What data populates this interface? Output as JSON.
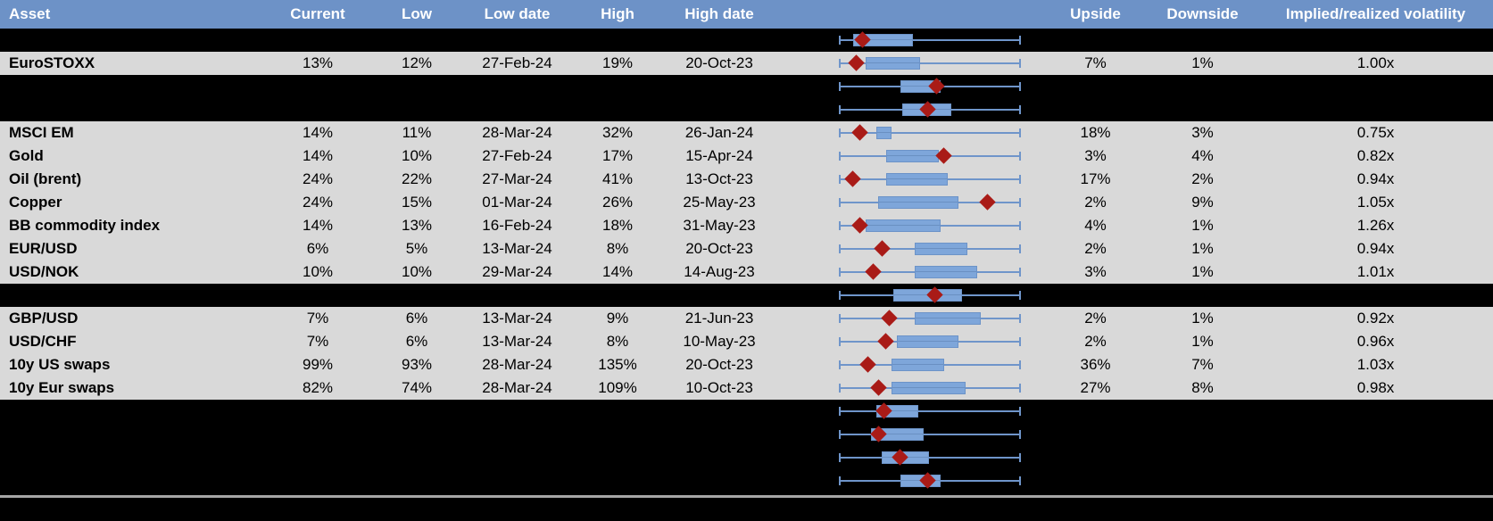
{
  "table": {
    "columns": [
      {
        "key": "asset",
        "label": "Asset"
      },
      {
        "key": "current",
        "label": "Current"
      },
      {
        "key": "low",
        "label": "Low"
      },
      {
        "key": "low_date",
        "label": "Low date"
      },
      {
        "key": "high",
        "label": "High"
      },
      {
        "key": "high_date",
        "label": "High date"
      },
      {
        "key": "plot",
        "label": ""
      },
      {
        "key": "upside",
        "label": "Upside"
      },
      {
        "key": "downside",
        "label": "Downside"
      },
      {
        "key": "ivol",
        "label": "Implied/realized volatility"
      }
    ],
    "rows": [
      {
        "type": "spacer",
        "box": {
          "lo": 0.08,
          "hi": 0.41,
          "d": 0.13
        }
      },
      {
        "type": "data",
        "asset": "EuroSTOXX",
        "current": "13%",
        "low": "12%",
        "low_date": "27-Feb-24",
        "high": "19%",
        "high_date": "20-Oct-23",
        "upside": "7%",
        "downside": "1%",
        "ivol": "1.00x",
        "box": {
          "lo": 0.15,
          "hi": 0.45,
          "d": 0.1
        }
      },
      {
        "type": "spacer",
        "box": {
          "lo": 0.34,
          "hi": 0.56,
          "d": 0.54
        }
      },
      {
        "type": "spacer",
        "box": {
          "lo": 0.35,
          "hi": 0.62,
          "d": 0.49
        }
      },
      {
        "type": "data",
        "asset": "MSCI EM",
        "current": "14%",
        "low": "11%",
        "low_date": "28-Mar-24",
        "high": "32%",
        "high_date": "26-Jan-24",
        "upside": "18%",
        "downside": "3%",
        "ivol": "0.75x",
        "box": {
          "lo": 0.21,
          "hi": 0.29,
          "d": 0.12
        }
      },
      {
        "type": "data",
        "asset": "Gold",
        "current": "14%",
        "low": "10%",
        "low_date": "27-Feb-24",
        "high": "17%",
        "high_date": "15-Apr-24",
        "upside": "3%",
        "downside": "4%",
        "ivol": "0.82x",
        "box": {
          "lo": 0.26,
          "hi": 0.55,
          "d": 0.58
        }
      },
      {
        "type": "data",
        "asset": "Oil (brent)",
        "current": "24%",
        "low": "22%",
        "low_date": "27-Mar-24",
        "high": "41%",
        "high_date": "13-Oct-23",
        "upside": "17%",
        "downside": "2%",
        "ivol": "0.94x",
        "box": {
          "lo": 0.26,
          "hi": 0.6,
          "d": 0.08
        }
      },
      {
        "type": "data",
        "asset": "Copper",
        "current": "24%",
        "low": "15%",
        "low_date": "01-Mar-24",
        "high": "26%",
        "high_date": "25-May-23",
        "upside": "2%",
        "downside": "9%",
        "ivol": "1.05x",
        "box": {
          "lo": 0.22,
          "hi": 0.66,
          "d": 0.82
        }
      },
      {
        "type": "data",
        "asset": "BB commodity index",
        "current": "14%",
        "low": "13%",
        "low_date": "16-Feb-24",
        "high": "18%",
        "high_date": "31-May-23",
        "upside": "4%",
        "downside": "1%",
        "ivol": "1.26x",
        "box": {
          "lo": 0.15,
          "hi": 0.56,
          "d": 0.12
        }
      },
      {
        "type": "data",
        "asset": "EUR/USD",
        "current": "6%",
        "low": "5%",
        "low_date": "13-Mar-24",
        "high": "8%",
        "high_date": "20-Oct-23",
        "upside": "2%",
        "downside": "1%",
        "ivol": "0.94x",
        "box": {
          "lo": 0.42,
          "hi": 0.71,
          "d": 0.24
        }
      },
      {
        "type": "data",
        "asset": "USD/NOK",
        "current": "10%",
        "low": "10%",
        "low_date": "29-Mar-24",
        "high": "14%",
        "high_date": "14-Aug-23",
        "upside": "3%",
        "downside": "1%",
        "ivol": "1.01x",
        "box": {
          "lo": 0.42,
          "hi": 0.76,
          "d": 0.19
        }
      },
      {
        "type": "spacer",
        "box": {
          "lo": 0.3,
          "hi": 0.68,
          "d": 0.53
        }
      },
      {
        "type": "data",
        "asset": "GBP/USD",
        "current": "7%",
        "low": "6%",
        "low_date": "13-Mar-24",
        "high": "9%",
        "high_date": "21-Jun-23",
        "upside": "2%",
        "downside": "1%",
        "ivol": "0.92x",
        "box": {
          "lo": 0.42,
          "hi": 0.78,
          "d": 0.28
        }
      },
      {
        "type": "data",
        "asset": "USD/CHF",
        "current": "7%",
        "low": "6%",
        "low_date": "13-Mar-24",
        "high": "8%",
        "high_date": "10-May-23",
        "upside": "2%",
        "downside": "1%",
        "ivol": "0.96x",
        "box": {
          "lo": 0.32,
          "hi": 0.66,
          "d": 0.26
        }
      },
      {
        "type": "data",
        "asset": "10y US swaps",
        "current": "99%",
        "low": "93%",
        "low_date": "28-Mar-24",
        "high": "135%",
        "high_date": "20-Oct-23",
        "upside": "36%",
        "downside": "7%",
        "ivol": "1.03x",
        "box": {
          "lo": 0.29,
          "hi": 0.58,
          "d": 0.16
        }
      },
      {
        "type": "data",
        "asset": "10y Eur swaps",
        "current": "82%",
        "low": "74%",
        "low_date": "28-Mar-24",
        "high": "109%",
        "high_date": "10-Oct-23",
        "upside": "27%",
        "downside": "8%",
        "ivol": "0.98x",
        "box": {
          "lo": 0.29,
          "hi": 0.7,
          "d": 0.22
        }
      },
      {
        "type": "spacer",
        "box": {
          "lo": 0.21,
          "hi": 0.44,
          "d": 0.25
        }
      },
      {
        "type": "spacer",
        "box": {
          "lo": 0.18,
          "hi": 0.47,
          "d": 0.22
        }
      },
      {
        "type": "spacer",
        "box": {
          "lo": 0.24,
          "hi": 0.5,
          "d": 0.34
        }
      },
      {
        "type": "spacer",
        "box": {
          "lo": 0.34,
          "hi": 0.56,
          "d": 0.49
        }
      }
    ]
  },
  "chart_data": {
    "type": "boxplot",
    "note": "Each row renders a min-max normalized horizontal box plot: whiskers span full range (0-1), box = lo..hi, red diamond = current level marker at d.",
    "rows_with_assets": [
      "EuroSTOXX",
      "MSCI EM",
      "Gold",
      "Oil (brent)",
      "Copper",
      "BB commodity index",
      "EUR/USD",
      "USD/NOK",
      "GBP/USD",
      "USD/CHF",
      "10y US swaps",
      "10y Eur swaps"
    ]
  },
  "colors": {
    "header_bg": "#6d92c7",
    "header_text": "#ffffff",
    "row_gray": "#d9d9d9",
    "row_black": "#000000",
    "box_fill": "#7ea6da",
    "whisker_blue": "#6f95ca",
    "diamond_red": "#a91b17",
    "separator_gray": "#a6a6a6"
  }
}
